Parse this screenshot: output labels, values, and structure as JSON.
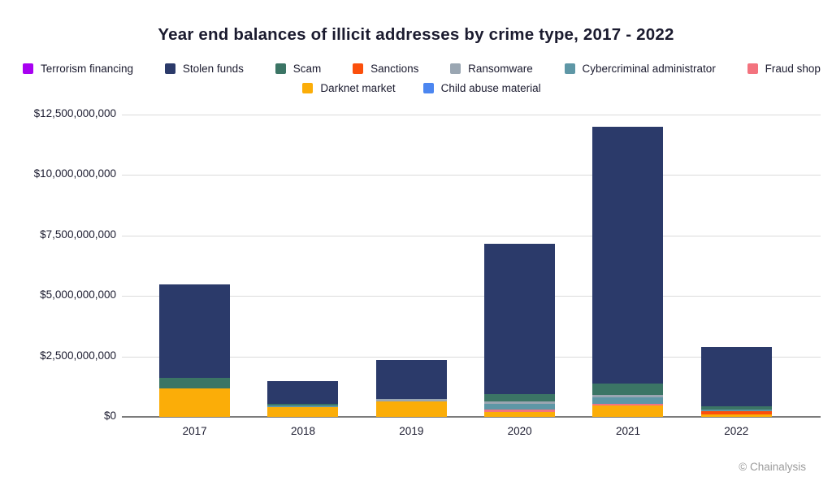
{
  "chart_data": {
    "type": "bar",
    "stacked": true,
    "title": "Year end balances of illicit addresses by crime type, 2017 - 2022",
    "source": "© Chainalysis",
    "categories": [
      "2017",
      "2018",
      "2019",
      "2020",
      "2021",
      "2022"
    ],
    "unit": "USD",
    "ylim": [
      0,
      12500000000
    ],
    "grid": "horizontal",
    "y_ticks": [
      {
        "value": 0,
        "label": "$0"
      },
      {
        "value": 2500000000,
        "label": "$2,500,000,000"
      },
      {
        "value": 5000000000,
        "label": "$5,000,000,000"
      },
      {
        "value": 7500000000,
        "label": "$7,500,000,000"
      },
      {
        "value": 10000000000,
        "label": "$10,000,000,000"
      },
      {
        "value": 12500000000,
        "label": "$12,500,000,000"
      }
    ],
    "series": [
      {
        "name": "Terrorism financing",
        "color": "#a801f1",
        "values": [
          0,
          0,
          0,
          0,
          0,
          0
        ]
      },
      {
        "name": "Stolen funds",
        "color": "#2b3a6a",
        "values": [
          3860000000,
          940000000,
          1620000000,
          6200000000,
          10590000000,
          2440000000
        ]
      },
      {
        "name": "Scam",
        "color": "#3b7565",
        "values": [
          450000000,
          70000000,
          0,
          310000000,
          470000000,
          130000000
        ]
      },
      {
        "name": "Sanctions",
        "color": "#fb4f0c",
        "values": [
          0,
          0,
          0,
          0,
          0,
          130000000
        ]
      },
      {
        "name": "Ransomware",
        "color": "#9aa6b2",
        "values": [
          0,
          0,
          100000000,
          100000000,
          110000000,
          0
        ]
      },
      {
        "name": "Cybercriminal administrator",
        "color": "#5e97a6",
        "values": [
          0,
          70000000,
          0,
          230000000,
          260000000,
          80000000
        ]
      },
      {
        "name": "Fraud shop",
        "color": "#f3737e",
        "values": [
          0,
          0,
          0,
          100000000,
          90000000,
          0
        ]
      },
      {
        "name": "Darknet market",
        "color": "#fbad08",
        "values": [
          1160000000,
          390000000,
          640000000,
          200000000,
          460000000,
          90000000
        ]
      },
      {
        "name": "Child abuse material",
        "color": "#4c86f0",
        "values": [
          0,
          0,
          0,
          0,
          0,
          0
        ]
      }
    ],
    "stack_order_bottom_to_top": [
      "Child abuse material",
      "Darknet market",
      "Sanctions",
      "Fraud shop",
      "Cybercriminal administrator",
      "Ransomware",
      "Scam",
      "Stolen funds",
      "Terrorism financing"
    ],
    "legend_rows": [
      [
        "Terrorism financing",
        "Stolen funds",
        "Scam",
        "Sanctions",
        "Ransomware",
        "Cybercriminal administrator",
        "Fraud shop"
      ],
      [
        "Darknet market",
        "Child abuse material"
      ]
    ],
    "bar_totals": [
      5470000000,
      1470000000,
      2360000000,
      7140000000,
      11980000000,
      2870000000
    ]
  }
}
